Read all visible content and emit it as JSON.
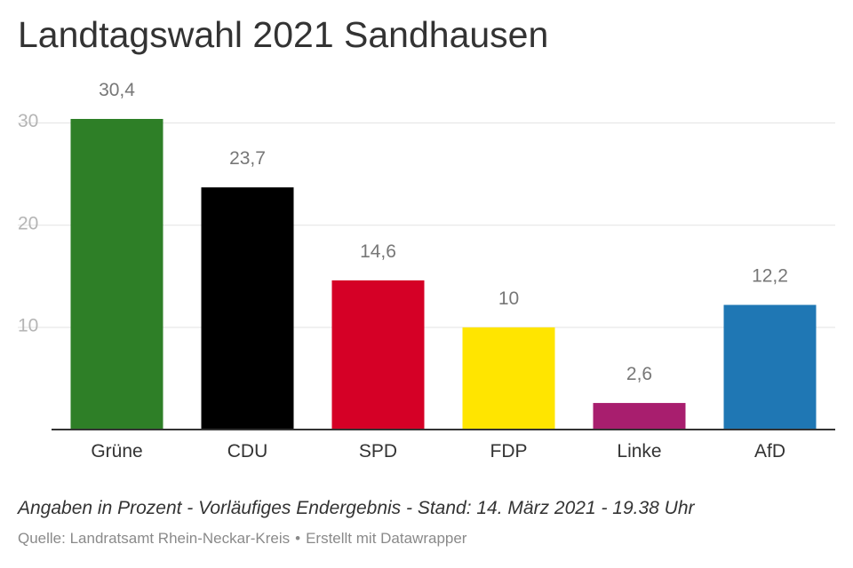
{
  "header": {
    "title": "Landtagswahl 2021 Sandhausen"
  },
  "footer": {
    "note": "Angaben in Prozent - Vorläufiges Endergebnis - Stand: 14. März 2021 - 19.38 Uhr",
    "source": "Quelle: Landratsamt Rhein-Neckar-Kreis",
    "separator": "•",
    "credit": "Erstellt mit Datawrapper"
  },
  "chart_data": {
    "type": "bar",
    "title": "Landtagswahl 2021 Sandhausen",
    "xlabel": "",
    "ylabel": "",
    "ylim": [
      0,
      30.4
    ],
    "yticks": [
      10,
      20,
      30
    ],
    "grid": true,
    "categories": [
      "Grüne",
      "CDU",
      "SPD",
      "FDP",
      "Linke",
      "AfD"
    ],
    "values": [
      30.4,
      23.7,
      14.6,
      10,
      2.6,
      12.2
    ],
    "value_labels": [
      "30,4",
      "23,7",
      "14,6",
      "10",
      "2,6",
      "12,2"
    ],
    "colors": [
      "#2e7f27",
      "#000000",
      "#d50026",
      "#ffe500",
      "#a81e6e",
      "#1f77b4"
    ]
  }
}
